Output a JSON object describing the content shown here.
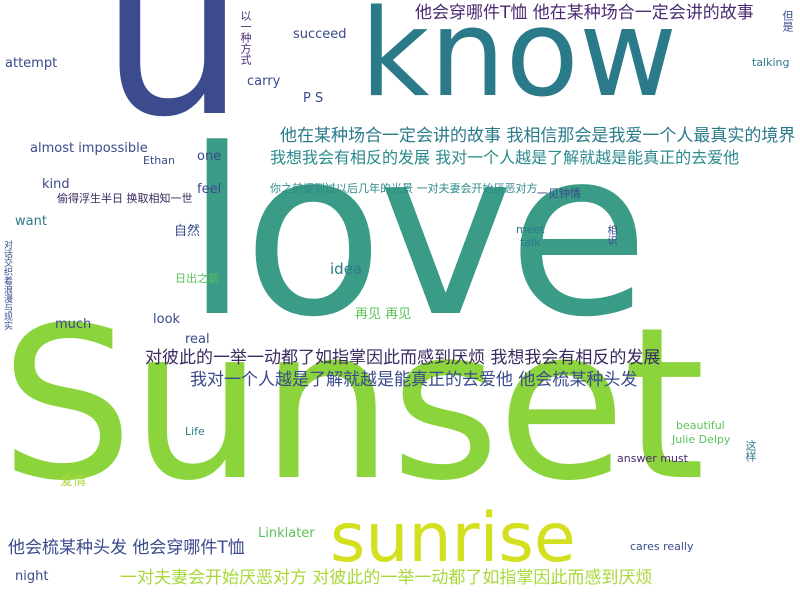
{
  "colors": {
    "love": "#3a9b87",
    "u": "#3b4b8e",
    "know": "#2a7a8a",
    "sunset": "#8bd43c",
    "sunrise": "#d3e01f",
    "dark_purple": "#4a2a72",
    "teal": "#2b8a8c",
    "navy": "#3a4a8b",
    "green": "#5cc25a",
    "lime": "#a8d83a"
  },
  "big_words": {
    "love": "love",
    "u": "u",
    "know": "know",
    "sunset": "Sunset",
    "sunrise": "sunrise"
  },
  "phrases": {
    "p1": "他会穿哪件T恤 他在某种场合一定会讲的故事",
    "p2": "他在某种场合一定会讲的故事 我相信那会是我爱一个人最真实的境界",
    "p3": "我想我会有相反的发展 我对一个人越是了解就越是能真正的去爱他",
    "p4": "对彼此的一举一动都了如指掌因此而感到厌烦 我想我会有相反的发展",
    "p5": "我对一个人越是了解就越是能真正的去爱他 他会梳某种头发",
    "p6": "他会梳某种头发 他会穿哪件T恤",
    "p7": "一对夫妻会开始厌恶对方 对彼此的一举一动都了如指掌因此而感到厌烦"
  },
  "words": {
    "attempt": "attempt",
    "succeed": "succeed",
    "carry": "carry",
    "ps": "P S",
    "almost": "almost impossible",
    "kind": "kind",
    "want": "want",
    "idea": "idea",
    "look": "look",
    "much": "much",
    "real": "real",
    "feel": "feel",
    "one": "one",
    "meet": "meet",
    "talk": "talk",
    "talking": "talking",
    "life": "Life",
    "night": "night",
    "linklater": "Linklater",
    "julie": "Julie Delpy",
    "answer": "answer must",
    "cares": "cares really",
    "beautiful": "beautiful",
    "ethan": "Ethan"
  },
  "chinese": {
    "c1": "再见 再见",
    "c2": "爱情",
    "c3": "自然",
    "c4": "一见钟情",
    "c5": "偷得浮生半日 换取相知一世",
    "c6": "你之前提到过以后几年的光景 一对夫妻会开始厌恶对方",
    "c7": "日出之前"
  },
  "vertical": {
    "v1": "以一种方式",
    "v2": "但是",
    "v3": "这样",
    "v4": "对话交织着浪漫与现实",
    "v5": "相识"
  }
}
